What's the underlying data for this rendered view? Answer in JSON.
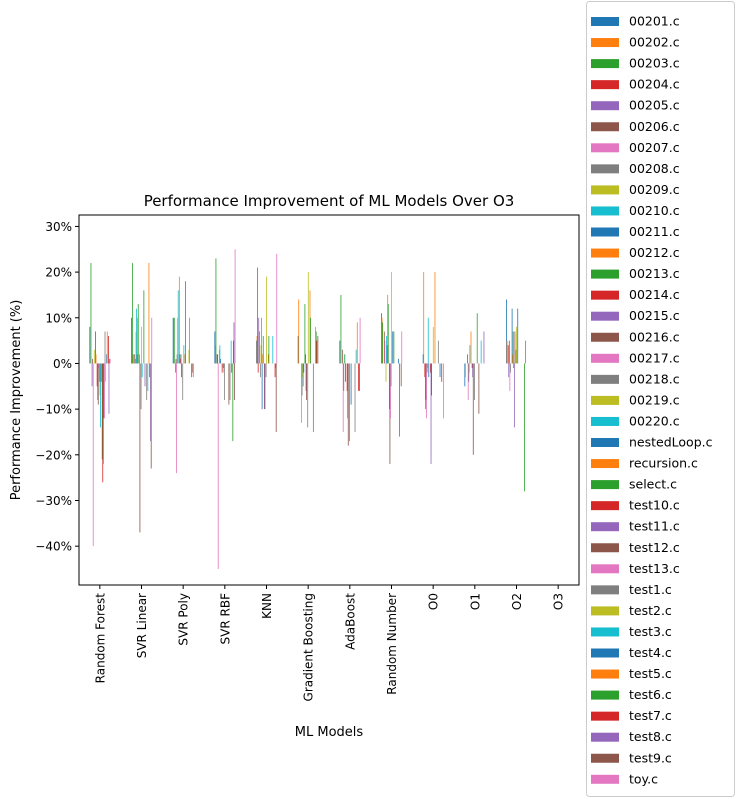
{
  "chart_data": {
    "type": "bar",
    "title": "Performance Improvement of ML Models Over O3",
    "xlabel": "ML Models",
    "ylabel": "Performance Improvement (%)",
    "ylim": [
      -48.5,
      32.5
    ],
    "yticks": [
      -40,
      -30,
      -20,
      -10,
      0,
      10,
      20,
      30
    ],
    "ytick_labels": [
      "−40%",
      "−30%",
      "−20%",
      "−10%",
      "0%",
      "10%",
      "20%",
      "30%"
    ],
    "grid": false,
    "legend_placement": "outside-right",
    "categories": [
      "Random Forest",
      "SVR Linear",
      "SVR Poly",
      "SVR RBF",
      "KNN",
      "Gradient Boosting",
      "AdaBoost",
      "Random Number",
      "O0",
      "O1",
      "O2",
      "O3"
    ],
    "series": [
      {
        "name": "00201.c",
        "color": "#1f77b4",
        "values": [
          8,
          10,
          10,
          7,
          5,
          6,
          5,
          11,
          2,
          -5,
          14,
          0
        ]
      },
      {
        "name": "00202.c",
        "color": "#ff7f0e",
        "values": [
          0,
          2,
          10,
          4,
          6,
          14,
          0,
          10,
          20,
          -3,
          5,
          0
        ]
      },
      {
        "name": "00203.c",
        "color": "#2ca02c",
        "values": [
          22,
          22,
          10,
          23,
          21,
          0,
          15,
          9,
          0,
          0,
          0,
          0
        ]
      },
      {
        "name": "00204.c",
        "color": "#d62728",
        "values": [
          0,
          0,
          0,
          0,
          -2,
          0,
          0,
          0,
          -3,
          0,
          4,
          0
        ]
      },
      {
        "name": "00205.c",
        "color": "#9467bd",
        "values": [
          -5,
          2,
          -2,
          2,
          10,
          0,
          0,
          0,
          -10,
          0,
          -3,
          0
        ]
      },
      {
        "name": "00206.c",
        "color": "#8c564b",
        "values": [
          1,
          2,
          1,
          2,
          7,
          0,
          3,
          7,
          -8,
          2,
          5,
          0
        ]
      },
      {
        "name": "00207.c",
        "color": "#e377c2",
        "values": [
          -40,
          0,
          -24,
          -45,
          0,
          -13,
          -15,
          5,
          -12,
          -8,
          -6,
          0
        ]
      },
      {
        "name": "00208.c",
        "color": "#7f7f7f",
        "values": [
          0,
          1,
          2,
          0,
          -3,
          -7,
          -6,
          0,
          -2,
          -4,
          -2,
          0
        ]
      },
      {
        "name": "00209.c",
        "color": "#bcbd22",
        "values": [
          3,
          7,
          10,
          3,
          4,
          -3,
          2,
          -4,
          -1,
          -2,
          0,
          0
        ]
      },
      {
        "name": "00210.c",
        "color": "#17becf",
        "values": [
          0,
          12,
          16,
          4,
          10,
          -5,
          2,
          6,
          10,
          4,
          0,
          0
        ]
      },
      {
        "name": "00211.c",
        "color": "#1f77b4",
        "values": [
          7,
          2,
          0,
          1,
          -10,
          -2,
          -4,
          4,
          -3,
          0,
          12,
          0
        ]
      },
      {
        "name": "00212.c",
        "color": "#ff7f0e",
        "values": [
          2,
          10,
          19,
          0,
          2,
          0,
          0,
          15,
          0,
          7,
          2,
          0
        ]
      },
      {
        "name": "00213.c",
        "color": "#2ca02c",
        "values": [
          0,
          13,
          2,
          0,
          6,
          13,
          0,
          13,
          0,
          0,
          7,
          0
        ]
      },
      {
        "name": "00214.c",
        "color": "#d62728",
        "values": [
          -5,
          0,
          1,
          -2,
          0,
          2,
          -6,
          0,
          -2,
          -1,
          -1,
          0
        ]
      },
      {
        "name": "00215.c",
        "color": "#9467bd",
        "values": [
          -8,
          2,
          2,
          0,
          -10,
          -6,
          -12,
          -10,
          -22,
          -3,
          -14,
          0
        ]
      },
      {
        "name": "00216.c",
        "color": "#8c564b",
        "values": [
          -9,
          -37,
          -3,
          -1,
          -10,
          -8,
          -18,
          -22,
          -7,
          -20,
          7,
          0
        ]
      },
      {
        "name": "00217.c",
        "color": "#e377c2",
        "values": [
          -1,
          0,
          0,
          -2,
          0,
          0,
          0,
          -12,
          0,
          0,
          0,
          0
        ]
      },
      {
        "name": "00218.c",
        "color": "#7f7f7f",
        "values": [
          -4,
          -10,
          -8,
          -8,
          -3,
          -14,
          -17,
          -5,
          0,
          -8,
          3,
          0
        ]
      },
      {
        "name": "00219.c",
        "color": "#bcbd22",
        "values": [
          -7,
          8,
          0,
          0,
          19,
          20,
          0,
          20,
          8,
          0,
          8,
          0
        ]
      },
      {
        "name": "00220.c",
        "color": "#17becf",
        "values": [
          -14,
          -3,
          4,
          0,
          0,
          0,
          0,
          0,
          0,
          0,
          0,
          0
        ]
      },
      {
        "name": "nestedLoop.c",
        "color": "#1f77b4",
        "values": [
          -4,
          0,
          0,
          0,
          0,
          0,
          -9,
          7,
          0,
          0,
          12,
          0
        ]
      },
      {
        "name": "recursion.c",
        "color": "#ff7f0e",
        "values": [
          0,
          0,
          2,
          0,
          2,
          16,
          0,
          0,
          20,
          0,
          0,
          0
        ]
      },
      {
        "name": "select.c",
        "color": "#2ca02c",
        "values": [
          -21,
          16,
          18,
          0,
          6,
          10,
          0,
          7,
          0,
          11,
          0,
          0
        ]
      },
      {
        "name": "test10.c",
        "color": "#d62728",
        "values": [
          -26,
          0,
          0,
          0,
          0,
          0,
          0,
          0,
          0,
          0,
          0,
          0
        ]
      },
      {
        "name": "test11.c",
        "color": "#9467bd",
        "values": [
          -22,
          -5,
          0,
          0,
          0,
          0,
          0,
          0,
          0,
          0,
          0,
          0
        ]
      },
      {
        "name": "test12.c",
        "color": "#8c564b",
        "values": [
          -12,
          0,
          0,
          -9,
          0,
          0,
          0,
          0,
          0,
          -11,
          0,
          0
        ]
      },
      {
        "name": "test13.c",
        "color": "#e377c2",
        "values": [
          -12,
          0,
          0,
          0,
          0,
          0,
          0,
          0,
          0,
          0,
          0,
          0
        ]
      },
      {
        "name": "test1.c",
        "color": "#7f7f7f",
        "values": [
          7,
          -8,
          0,
          -8,
          0,
          -15,
          -15,
          0,
          5,
          0,
          0,
          0
        ]
      },
      {
        "name": "test2.c",
        "color": "#bcbd22",
        "values": [
          -4,
          0,
          3,
          0,
          0,
          0,
          0,
          0,
          0,
          0,
          0,
          0
        ]
      },
      {
        "name": "test3.c",
        "color": "#17becf",
        "values": [
          0,
          -6,
          10,
          5,
          6,
          0,
          3,
          0,
          0,
          5,
          0,
          0
        ]
      },
      {
        "name": "test4.c",
        "color": "#1f77b4",
        "values": [
          2,
          0,
          0,
          -2,
          0,
          0,
          0,
          1,
          -3,
          0,
          0,
          0
        ]
      },
      {
        "name": "test5.c",
        "color": "#ff7f0e",
        "values": [
          7,
          22,
          0,
          0,
          0,
          8,
          9,
          0,
          0,
          0,
          0,
          0
        ]
      },
      {
        "name": "test6.c",
        "color": "#2ca02c",
        "values": [
          0,
          -3,
          0,
          -17,
          0,
          7,
          0,
          -16,
          0,
          0,
          -28,
          0
        ]
      },
      {
        "name": "test7.c",
        "color": "#d62728",
        "values": [
          6,
          0,
          -3,
          5,
          -3,
          5,
          -6,
          0,
          -4,
          0,
          0,
          0
        ]
      },
      {
        "name": "test8.c",
        "color": "#9467bd",
        "values": [
          -11,
          -17,
          0,
          9,
          -1,
          0,
          0,
          0,
          0,
          7,
          5,
          0
        ]
      },
      {
        "name": "test9.c",
        "color": "#8c564b",
        "values": [
          1,
          -23,
          -2,
          -8,
          -15,
          6,
          -6,
          -5,
          0,
          0,
          0,
          0
        ]
      },
      {
        "name": "toy.c",
        "color": "#e377c2",
        "values": [
          1,
          10,
          -3,
          25,
          24,
          0,
          10,
          7,
          -12,
          0,
          0,
          0
        ]
      }
    ]
  }
}
